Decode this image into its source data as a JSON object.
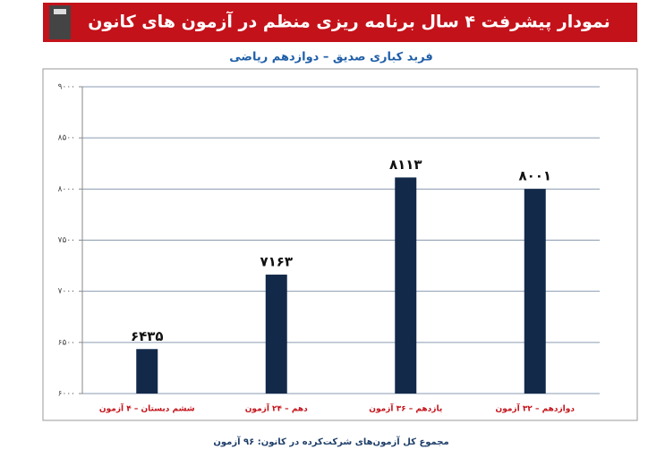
{
  "chart_data": {
    "type": "bar",
    "title": "نمودار پیشرفت ۴ سال برنامه ریزی منظم در آزمون های کانون",
    "subtitle": "فربد کباری صدیق – دوازدهم ریاضی",
    "footnote": "مجموع کل آزمون‌های شرکت‌کرده در کانون: ۹۶ آزمون",
    "categories": [
      "ششم دبستان – ۴ آزمون",
      "دهم – ۲۴ آزمون",
      "یازدهم – ۳۶ آزمون",
      "دوازدهم – ۳۲ آزمون"
    ],
    "values": [
      6435,
      7163,
      8113,
      8001
    ],
    "value_labels": [
      "۶۴۳۵",
      "۷۱۶۳",
      "۸۱۱۳",
      "۸۰۰۱"
    ],
    "color": "#13294a",
    "ylim": [
      6000,
      9000
    ],
    "yticks": [
      {
        "value": 6000,
        "label": "۶۰۰۰"
      },
      {
        "value": 6500,
        "label": "۶۵۰۰"
      },
      {
        "value": 7000,
        "label": "۷۰۰۰"
      },
      {
        "value": 7500,
        "label": "۷۵۰۰"
      },
      {
        "value": 8000,
        "label": "۸۰۰۰"
      },
      {
        "value": 8500,
        "label": "۸۵۰۰"
      },
      {
        "value": 9000,
        "label": "۹۰۰۰"
      }
    ],
    "grid": true
  }
}
